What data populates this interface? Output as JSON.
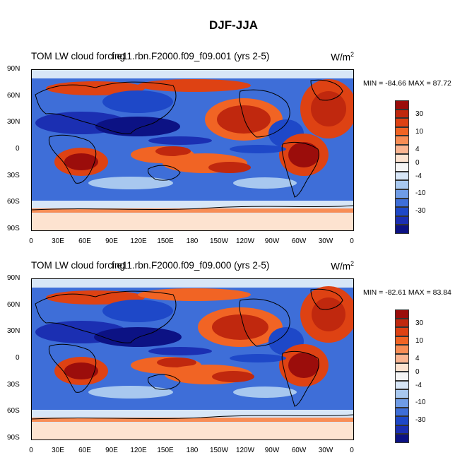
{
  "title": "DJF-JJA",
  "units_text": "W/m",
  "units_exponent": "2",
  "panels": [
    {
      "left_title": "TOM LW cloud forcing",
      "center_title": "f.e11.rbn.F2000.f09_f09.001 (yrs 2-5)",
      "minmax": "MIN = -84.66 MAX =  87.72",
      "min": -84.66,
      "max": 87.72
    },
    {
      "left_title": "TOM LW cloud forcing",
      "center_title": "f.e11.rbn.F2000.f09_f09.000 (yrs 2-5)",
      "minmax": "MIN = -82.61 MAX =  83.84",
      "min": -82.61,
      "max": 83.84
    }
  ],
  "lat_labels": [
    "90N",
    "60N",
    "30N",
    "0",
    "30S",
    "60S",
    "90S"
  ],
  "lon_labels": [
    "0",
    "30E",
    "60E",
    "90E",
    "120E",
    "150E",
    "180",
    "150W",
    "120W",
    "90W",
    "60W",
    "30W",
    "0"
  ],
  "colorbar": {
    "labels": [
      "30",
      "10",
      "4",
      "0",
      "-4",
      "-10",
      "-30"
    ],
    "colors": [
      "#9b0d0b",
      "#c0280e",
      "#de4213",
      "#f16424",
      "#f88d55",
      "#fbb591",
      "#fde3d0",
      "#f5f5f5",
      "#d7e6f7",
      "#a8c8ef",
      "#6f9ce6",
      "#3e6ed8",
      "#1e48c8",
      "#1b2fb2",
      "#0c1284"
    ]
  },
  "chart_data": {
    "type": "heatmap",
    "projection": "cylindrical equidistant",
    "variable": "TOM LW cloud forcing",
    "units": "W/m2",
    "season_difference": "DJF-JJA",
    "lat_range": [
      -90,
      90
    ],
    "lon_range": [
      0,
      360
    ],
    "contour_levels": [
      -30,
      -10,
      -4,
      0,
      4,
      10,
      30
    ]
  }
}
